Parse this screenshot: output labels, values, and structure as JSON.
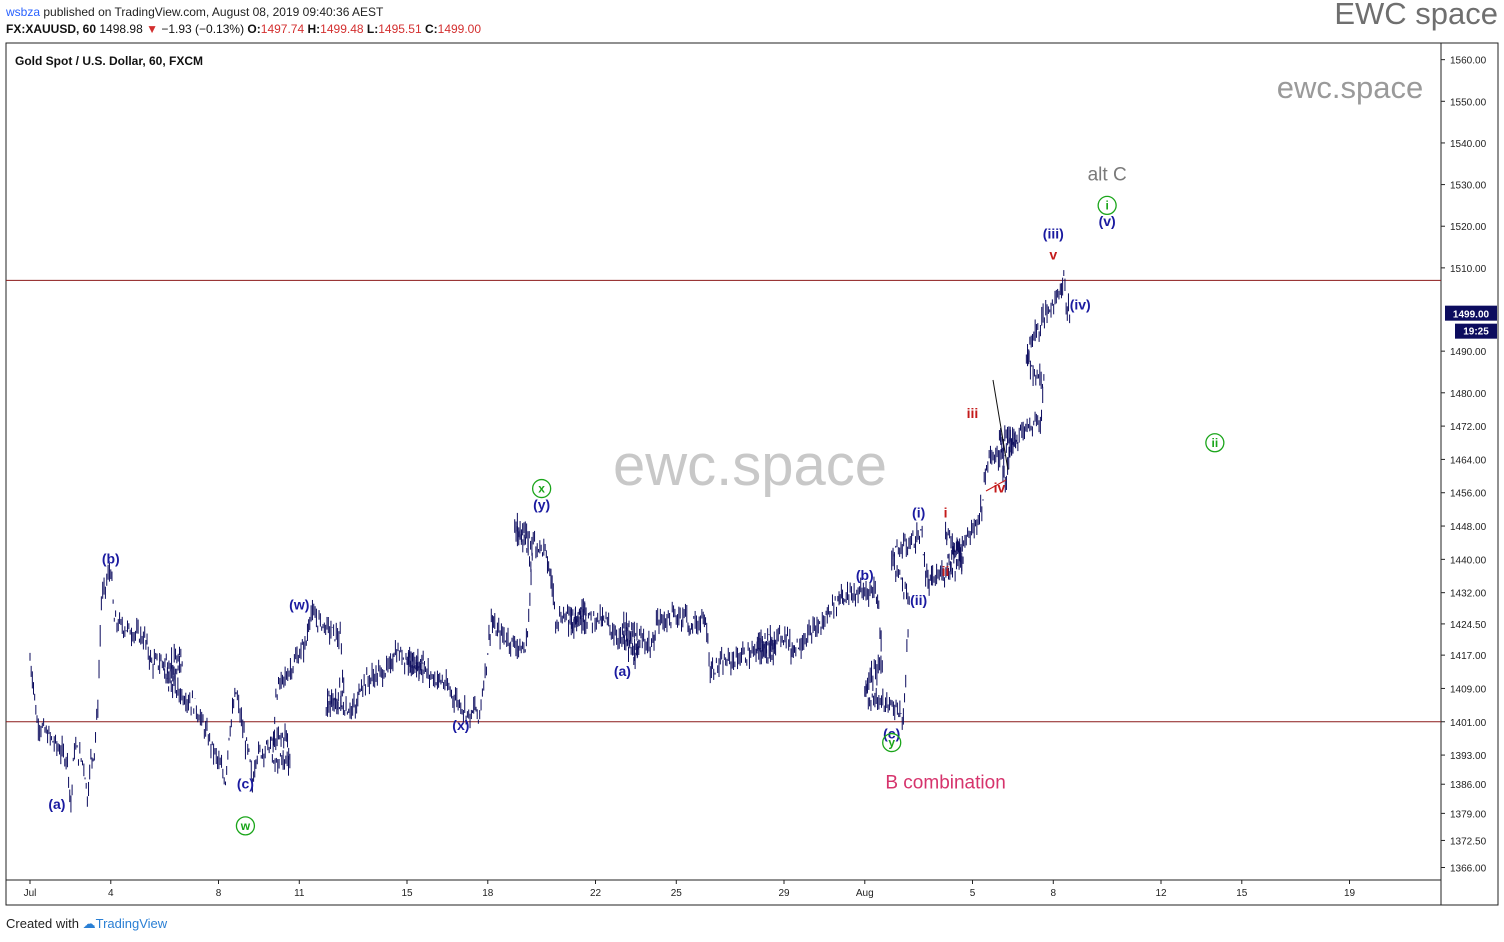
{
  "header": {
    "publisher": "wsbza",
    "published_text": "published on TradingView.com, August 08, 2019 09:40:36 AEST",
    "symbol": "FX:XAUUSD, 60",
    "last": "1498.98",
    "change_arrow": "▼",
    "change": "−1.93 (−0.13%)",
    "o_label": "O:",
    "o": "1497.74",
    "h_label": "H:",
    "h": "1499.48",
    "l_label": "L:",
    "l": "1495.51",
    "c_label": "C:",
    "c": "1499.00"
  },
  "brand": "EWC space",
  "footer": {
    "created_with": "Created with",
    "tradingview": "TradingView"
  },
  "colors": {
    "bars": "#0c0c5e",
    "hline": "#8b1a1a",
    "wave_blue": "#1a1aa0",
    "wave_green": "#1aa51a",
    "wave_red": "#c41a1a",
    "magenta": "#d6336c",
    "gray": "#7a7a7a",
    "watermark": "#c8c8c8"
  },
  "chart_data": {
    "type": "ohlc",
    "title": "Gold Spot / U.S. Dollar, 60, FXCM",
    "ylim": [
      1363,
      1564
    ],
    "y_ticks": [
      "1560.00",
      "1550.00",
      "1540.00",
      "1530.00",
      "1520.00",
      "1510.00",
      "1490.00",
      "1480.00",
      "1472.00",
      "1464.00",
      "1456.00",
      "1448.00",
      "1440.00",
      "1432.00",
      "1424.50",
      "1417.00",
      "1409.00",
      "1401.00",
      "1393.00",
      "1386.00",
      "1379.00",
      "1372.50",
      "1366.00"
    ],
    "x_ticks": [
      "Jul",
      "4",
      "8",
      "11",
      "15",
      "18",
      "22",
      "25",
      "29",
      "Aug",
      "5",
      "8",
      "12",
      "15",
      "19"
    ],
    "price_label": "1499.00",
    "countdown_label": "19:25",
    "horizontal_lines": [
      1507,
      1401
    ],
    "path": [
      [
        "Jul 1",
        1416
      ],
      [
        "Jul 1",
        1410
      ],
      [
        "Jul 1",
        1401
      ],
      [
        "Jul 2",
        1392
      ],
      [
        "Jul 2",
        1381
      ],
      [
        "Jul 2",
        1395
      ],
      [
        "Jul 3",
        1391
      ],
      [
        "Jul 3",
        1383
      ],
      [
        "Jul 3",
        1392
      ],
      [
        "Jul 3",
        1394
      ],
      [
        "Jul 3",
        1405
      ],
      [
        "Jul 3",
        1430
      ],
      [
        "Jul 4",
        1438
      ],
      [
        "Jul 4",
        1425
      ],
      [
        "Jul 5",
        1421
      ],
      [
        "Jul 5",
        1418
      ],
      [
        "Jul 5",
        1415
      ],
      [
        "Jul 6",
        1416
      ],
      [
        "Jul 6",
        1411
      ],
      [
        "Jul 7",
        1405
      ],
      [
        "Jul 8",
        1387
      ],
      [
        "Jul 8",
        1398
      ],
      [
        "Jul 8",
        1403
      ],
      [
        "Jul 8",
        1408
      ],
      [
        "Jul 9",
        1396
      ],
      [
        "Jul 9",
        1393
      ],
      [
        "Jul 9",
        1386
      ],
      [
        "Jul 9",
        1393
      ],
      [
        "Jul 10",
        1398
      ],
      [
        "Jul 10",
        1392
      ],
      [
        "Jul 10",
        1391
      ],
      [
        "Jul 10",
        1408
      ],
      [
        "Jul 11",
        1420
      ],
      [
        "Jul 11",
        1427
      ],
      [
        "Jul 12",
        1421
      ],
      [
        "Jul 12",
        1409
      ],
      [
        "Jul 12",
        1405
      ],
      [
        "Jul 13",
        1404
      ],
      [
        "Jul 13",
        1410
      ],
      [
        "Jul 14",
        1414
      ],
      [
        "Jul 14",
        1418
      ],
      [
        "Jul 15",
        1414
      ],
      [
        "Jul 15",
        1416
      ],
      [
        "Jul 16",
        1411
      ],
      [
        "Jul 16",
        1411
      ],
      [
        "Jul 17",
        1402
      ],
      [
        "Jul 17",
        1405
      ],
      [
        "Jul 17",
        1401
      ],
      [
        "Jul 18",
        1418
      ],
      [
        "Jul 18",
        1426
      ],
      [
        "Jul 18",
        1423
      ],
      [
        "Jul 19",
        1418
      ],
      [
        "Jul 19",
        1426
      ],
      [
        "Jul 19",
        1440
      ],
      [
        "Jul 19",
        1448
      ],
      [
        "Jul 20",
        1442
      ],
      [
        "Jul 20",
        1438
      ],
      [
        "Jul 20",
        1434
      ],
      [
        "Jul 20",
        1426
      ],
      [
        "Jul 21",
        1428
      ],
      [
        "Jul 21",
        1425
      ],
      [
        "Jul 22",
        1426
      ],
      [
        "Jul 22",
        1425
      ],
      [
        "Jul 22",
        1425
      ],
      [
        "Jul 23",
        1416
      ],
      [
        "Jul 23",
        1418
      ],
      [
        "Jul 23",
        1424
      ],
      [
        "Jul 24",
        1419
      ],
      [
        "Jul 24",
        1425
      ],
      [
        "Jul 25",
        1427
      ],
      [
        "Jul 25",
        1422
      ],
      [
        "Jul 25",
        1425
      ],
      [
        "Jul 26",
        1425
      ],
      [
        "Jul 26",
        1424
      ],
      [
        "Jul 26",
        1413
      ],
      [
        "Jul 26",
        1414
      ],
      [
        "Jul 27",
        1417
      ],
      [
        "Jul 28",
        1418
      ],
      [
        "Jul 28",
        1420
      ],
      [
        "Jul 29",
        1422
      ],
      [
        "Jul 29",
        1418
      ],
      [
        "Jul 29",
        1419
      ],
      [
        "Jul 30",
        1425
      ],
      [
        "Jul 30",
        1428
      ],
      [
        "Jul 31",
        1430
      ],
      [
        "Jul 31",
        1432
      ],
      [
        "Jul 31",
        1431
      ],
      [
        "Aug 1",
        1433
      ],
      [
        "Aug 1",
        1428
      ],
      [
        "Aug 1",
        1416
      ],
      [
        "Aug 1",
        1409
      ],
      [
        "Aug 1",
        1407
      ],
      [
        "Aug 2",
        1404
      ],
      [
        "Aug 2",
        1401
      ],
      [
        "Aug 2",
        1410
      ],
      [
        "Aug 2",
        1430
      ],
      [
        "Aug 2",
        1441
      ],
      [
        "Aug 3",
        1446
      ],
      [
        "Aug 3",
        1436
      ],
      [
        "Aug 3",
        1434
      ],
      [
        "Aug 3",
        1435
      ],
      [
        "Aug 4",
        1440
      ],
      [
        "Aug 4",
        1446
      ],
      [
        "Aug 4",
        1440
      ],
      [
        "Aug 5",
        1450
      ],
      [
        "Aug 5",
        1455
      ],
      [
        "Aug 5",
        1463
      ],
      [
        "Aug 6",
        1468
      ],
      [
        "Aug 6",
        1470
      ],
      [
        "Aug 6",
        1462
      ],
      [
        "Aug 6",
        1458
      ],
      [
        "Aug 6",
        1468
      ],
      [
        "Aug 7",
        1474
      ],
      [
        "Aug 7",
        1482
      ],
      [
        "Aug 7",
        1488
      ],
      [
        "Aug 7",
        1492
      ],
      [
        "Aug 8",
        1505
      ],
      [
        "Aug 8",
        1508
      ],
      [
        "Aug 8",
        1500
      ],
      [
        "Aug 8",
        1499
      ]
    ],
    "wave_labels": [
      {
        "text": "(a)",
        "x": "Jul 2",
        "y": 1380,
        "color": "blue"
      },
      {
        "text": "(b)",
        "x": "Jul 4",
        "y": 1439,
        "color": "blue"
      },
      {
        "text": "(c)",
        "x": "Jul 9",
        "y": 1385,
        "color": "blue"
      },
      {
        "text": "w",
        "x": "Jul 9",
        "y": 1376,
        "color": "green",
        "circle": true
      },
      {
        "text": "(w)",
        "x": "Jul 11",
        "y": 1428,
        "color": "blue"
      },
      {
        "text": "(x)",
        "x": "Jul 17",
        "y": 1399,
        "color": "blue"
      },
      {
        "text": "(y)",
        "x": "Jul 20",
        "y": 1452,
        "color": "blue"
      },
      {
        "text": "x",
        "x": "Jul 20",
        "y": 1457,
        "color": "green",
        "circle": true
      },
      {
        "text": "(a)",
        "x": "Jul 23",
        "y": 1412,
        "color": "blue"
      },
      {
        "text": "(b)",
        "x": "Aug 1",
        "y": 1435,
        "color": "blue"
      },
      {
        "text": "(c)",
        "x": "Aug 2",
        "y": 1397,
        "color": "blue"
      },
      {
        "text": "y",
        "x": "Aug 2",
        "y": 1396,
        "color": "green",
        "circle": true
      },
      {
        "text": "(i)",
        "x": "Aug 3",
        "y": 1450,
        "color": "blue"
      },
      {
        "text": "(ii)",
        "x": "Aug 3",
        "y": 1429,
        "color": "blue"
      },
      {
        "text": "i",
        "x": "Aug 4",
        "y": 1450,
        "color": "red"
      },
      {
        "text": "ii",
        "x": "Aug 4",
        "y": 1436,
        "color": "red"
      },
      {
        "text": "iii",
        "x": "Aug 5",
        "y": 1474,
        "color": "red"
      },
      {
        "text": "iv",
        "x": "Aug 6",
        "y": 1456,
        "color": "red"
      },
      {
        "text": "(iii)",
        "x": "Aug 8",
        "y": 1517,
        "color": "blue"
      },
      {
        "text": "v",
        "x": "Aug 8",
        "y": 1512,
        "color": "red"
      },
      {
        "text": "(iv)",
        "x": "Aug 9",
        "y": 1500,
        "color": "blue"
      },
      {
        "text": "(v)",
        "x": "Aug 10",
        "y": 1520,
        "color": "blue"
      },
      {
        "text": "i",
        "x": "Aug 10",
        "y": 1525,
        "color": "green",
        "circle": true
      },
      {
        "text": "alt C",
        "x": "Aug 10",
        "y": 1531,
        "color": "gray"
      },
      {
        "text": "ii",
        "x": "Aug 14",
        "y": 1468,
        "color": "green",
        "circle": true
      },
      {
        "text": "B combination",
        "x": "Aug 4",
        "y": 1385,
        "color": "magenta"
      }
    ],
    "watermarks": [
      "ewc.space",
      "ewc.space"
    ]
  }
}
